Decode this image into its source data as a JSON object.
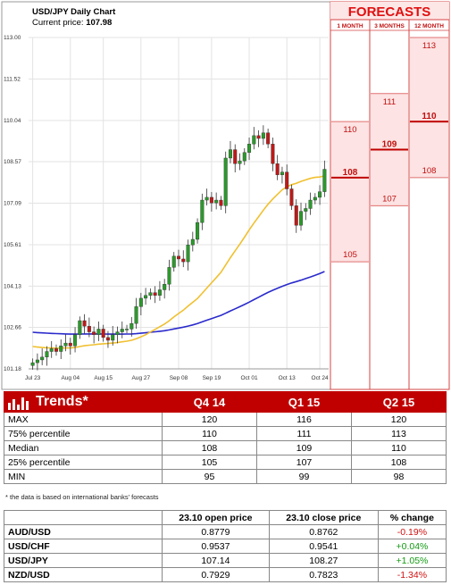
{
  "chart": {
    "title": "USD/JPY Daily Chart",
    "current_label": "Current price:",
    "current_value": "107.98"
  },
  "chart_data": {
    "type": "candlestick",
    "title": "USD/JPY Daily Chart",
    "y_ticks": [
      "113.00",
      "111.52",
      "110.04",
      "108.57",
      "107.09",
      "105.61",
      "104.13",
      "102.66",
      "101.18"
    ],
    "x_ticks": [
      "Jul 23",
      "Aug 04",
      "Aug 15",
      "Aug 27",
      "Sep 08",
      "Sep 19",
      "Oct 01",
      "Oct 13",
      "Oct 24"
    ],
    "ylim": [
      101.18,
      113.0
    ],
    "closes": [
      101.4,
      101.5,
      101.6,
      101.8,
      101.9,
      101.8,
      102.0,
      102.1,
      102.0,
      102.4,
      102.9,
      102.7,
      102.5,
      102.4,
      102.6,
      102.3,
      102.2,
      102.4,
      102.5,
      102.6,
      102.6,
      102.8,
      103.4,
      103.7,
      103.8,
      103.9,
      103.8,
      104.0,
      104.2,
      104.8,
      105.2,
      105.1,
      105.0,
      105.6,
      105.8,
      106.4,
      107.2,
      107.3,
      107.1,
      107.2,
      107.0,
      108.7,
      109.0,
      108.5,
      108.6,
      108.9,
      109.2,
      109.5,
      109.4,
      109.6,
      109.2,
      108.5,
      108.1,
      108.2,
      107.6,
      107.0,
      106.3,
      106.8,
      106.9,
      107.2,
      107.3,
      107.5,
      108.3
    ],
    "ma_slow_label": "",
    "ma_fast_label": "",
    "forecasts": {
      "title": "FORECASTS",
      "columns": [
        {
          "label": "1 MONTH",
          "max": "110",
          "median": "108",
          "min": "105"
        },
        {
          "label": "3 MONTHS",
          "max": "111",
          "median": "109",
          "min": "107"
        },
        {
          "label": "12 MONTH",
          "max": "113",
          "median": "110",
          "min": "108"
        }
      ]
    }
  },
  "trends": {
    "title": "Trends*",
    "columns": [
      "Q4 14",
      "Q1 15",
      "Q2 15"
    ],
    "rows": [
      {
        "label": "MAX",
        "values": [
          "120",
          "116",
          "120"
        ]
      },
      {
        "label": "75% percentile",
        "values": [
          "110",
          "111",
          "113"
        ]
      },
      {
        "label": "Median",
        "values": [
          "108",
          "109",
          "110"
        ]
      },
      {
        "label": "25% percentile",
        "values": [
          "105",
          "107",
          "108"
        ]
      },
      {
        "label": "MIN",
        "values": [
          "95",
          "99",
          "98"
        ]
      }
    ],
    "footnote": "* the data is based on international banks' forecasts"
  },
  "rates": {
    "headers": [
      "",
      "23.10 open price",
      "23.10 close price",
      "% change"
    ],
    "rows": [
      {
        "pair": "AUD/USD",
        "open": "0.8779",
        "close": "0.8762",
        "change": "-0.19%",
        "dir": "neg"
      },
      {
        "pair": "USD/CHF",
        "open": "0.9537",
        "close": "0.9541",
        "change": "+0.04%",
        "dir": "pos"
      },
      {
        "pair": "USD/JPY",
        "open": "107.14",
        "close": "108.27",
        "change": "+1.05%",
        "dir": "pos"
      },
      {
        "pair": "NZD/USD",
        "open": "0.7929",
        "close": "0.7823",
        "change": "-1.34%",
        "dir": "neg"
      }
    ]
  }
}
